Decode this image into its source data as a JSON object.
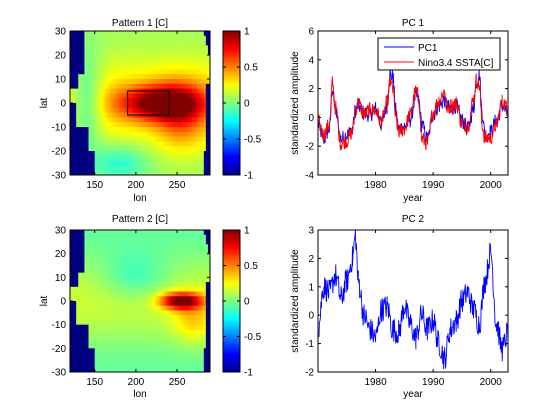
{
  "colors": {
    "pc_line": "#0000ff",
    "nino_line": "#ff0000",
    "land_mask": "#000080"
  },
  "colormap": "jet",
  "patterns": [
    {
      "title": "Pattern 1 [C]",
      "xlabel": "lon",
      "ylabel": "lat",
      "xlim": [
        120,
        290
      ],
      "ylim": [
        -30,
        30
      ],
      "xticks": [
        150,
        200,
        250
      ],
      "yticks": [
        -30,
        -20,
        -10,
        0,
        10,
        20,
        30
      ],
      "colorbar_ticks": [
        -1,
        -0.5,
        0,
        0.5,
        1
      ],
      "clim": [
        -1,
        1
      ],
      "box": {
        "lon": [
          190,
          240
        ],
        "lat": [
          -5,
          5
        ]
      },
      "field": {
        "type": "enso_pattern_1",
        "equatorial_peak_lon": 230,
        "peak_value": 1.0
      }
    },
    {
      "title": "Pattern 2 [C]",
      "xlabel": "lon",
      "ylabel": "lat",
      "xlim": [
        120,
        290
      ],
      "ylim": [
        -30,
        30
      ],
      "xticks": [
        150,
        200,
        250
      ],
      "yticks": [
        -30,
        -20,
        -10,
        0,
        10,
        20,
        30
      ],
      "colorbar_ticks": [
        -1,
        -0.5,
        0,
        0.5,
        1
      ],
      "clim": [
        -1,
        1
      ],
      "field": {
        "type": "enso_pattern_2",
        "equatorial_peak_lon": 255,
        "peak_value": 1.0
      }
    }
  ],
  "chart_data": [
    {
      "type": "line",
      "title": "PC 1",
      "xlabel": "year",
      "ylabel": "standardized amplitude",
      "xlim": [
        1970,
        2003
      ],
      "ylim": [
        -4,
        6
      ],
      "xticks": [
        1980,
        1990,
        2000
      ],
      "yticks": [
        -4,
        -2,
        0,
        2,
        4,
        6
      ],
      "legend_position": "top-right",
      "series": [
        {
          "name": "PC1",
          "color": "#0000ff",
          "x": [
            1970,
            1971,
            1972,
            1972.5,
            1973,
            1974,
            1975,
            1976,
            1976.5,
            1977,
            1978,
            1979,
            1980,
            1981,
            1982,
            1982.5,
            1983,
            1983.5,
            1984,
            1985,
            1986,
            1987,
            1987.5,
            1988,
            1989,
            1990,
            1991,
            1992,
            1992.5,
            1993,
            1994,
            1995,
            1996,
            1997,
            1997.5,
            1998,
            1998.5,
            1999,
            2000,
            2001,
            2002,
            2003
          ],
          "y": [
            -0.5,
            -1.5,
            -0.8,
            2.0,
            0.5,
            -1.5,
            -1.2,
            -0.8,
            0.5,
            0.8,
            0.3,
            0.2,
            0.6,
            -0.5,
            0.8,
            3.0,
            2.8,
            0.5,
            -0.8,
            -0.6,
            -0.2,
            1.5,
            1.2,
            -0.5,
            -1.5,
            0.2,
            0.8,
            1.2,
            0.7,
            0.6,
            0.8,
            -0.2,
            -0.8,
            0.6,
            2.5,
            3.0,
            0.3,
            -1.2,
            -1.0,
            -0.2,
            0.8,
            0.2
          ]
        },
        {
          "name": "Nino3.4 SSTA[C]",
          "color": "#ff0000",
          "x": [
            1970,
            1971,
            1972,
            1972.5,
            1973,
            1974,
            1975,
            1976,
            1976.5,
            1977,
            1978,
            1979,
            1980,
            1981,
            1982,
            1982.5,
            1983,
            1983.5,
            1984,
            1985,
            1986,
            1987,
            1987.5,
            1988,
            1989,
            1990,
            1991,
            1992,
            1992.5,
            1993,
            1994,
            1995,
            1996,
            1997,
            1997.5,
            1998,
            1998.5,
            1999,
            2000,
            2001,
            2002,
            2003
          ],
          "y": [
            -0.3,
            -1.2,
            -0.5,
            2.4,
            0.7,
            -1.8,
            -1.6,
            -1.0,
            0.6,
            1.0,
            0.2,
            0.5,
            0.5,
            -0.3,
            1.0,
            2.4,
            2.0,
            0.0,
            -1.0,
            -0.8,
            0.2,
            1.8,
            1.4,
            -1.5,
            -1.8,
            0.4,
            1.2,
            1.8,
            0.6,
            0.8,
            1.0,
            -0.4,
            -0.6,
            1.2,
            2.6,
            2.2,
            -0.5,
            -1.5,
            -1.4,
            -0.5,
            1.1,
            0.6
          ]
        }
      ]
    },
    {
      "type": "line",
      "title": "PC 2",
      "xlabel": "year",
      "ylabel": "standardized amplitude",
      "xlim": [
        1970,
        2003
      ],
      "ylim": [
        -2,
        3
      ],
      "xticks": [
        1980,
        1990,
        2000
      ],
      "yticks": [
        -2,
        -1,
        0,
        1,
        2,
        3
      ],
      "series": [
        {
          "color": "#0000ff",
          "x": [
            1970,
            1971,
            1972,
            1973,
            1974,
            1975,
            1976,
            1976.5,
            1977,
            1978,
            1979,
            1980,
            1981,
            1982,
            1983,
            1984,
            1985,
            1986,
            1987,
            1988,
            1989,
            1990,
            1991,
            1992,
            1993,
            1994,
            1995,
            1996,
            1997,
            1998,
            1999,
            2000,
            2001,
            2002,
            2003
          ],
          "y": [
            -0.5,
            1.0,
            0.8,
            1.4,
            0.6,
            1.2,
            2.0,
            2.8,
            1.2,
            0.0,
            -0.5,
            -0.8,
            0.2,
            0.3,
            -0.5,
            -0.6,
            0.3,
            -0.3,
            -0.8,
            0.0,
            -0.5,
            -0.2,
            -1.0,
            -1.5,
            -0.5,
            -0.2,
            0.5,
            0.8,
            0.2,
            -0.3,
            1.2,
            2.2,
            -0.3,
            -1.2,
            -0.6
          ]
        }
      ]
    }
  ]
}
